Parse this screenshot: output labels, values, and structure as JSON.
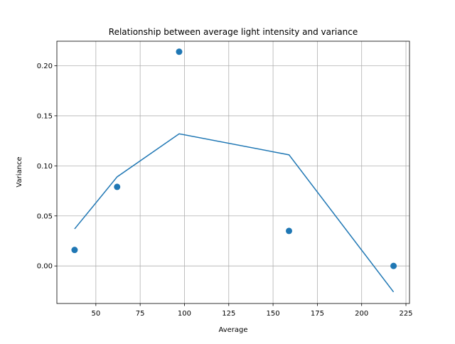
{
  "chart_data": {
    "type": "scatter",
    "title": "Relationship between average light intensity and variance",
    "xlabel": "Average",
    "ylabel": "Variance",
    "xlim": [
      28,
      227
    ],
    "ylim": [
      -0.0375,
      0.2245
    ],
    "xticks": [
      50,
      75,
      100,
      125,
      150,
      175,
      200,
      225
    ],
    "xtick_labels": [
      "50",
      "75",
      "100",
      "125",
      "150",
      "175",
      "200",
      "225"
    ],
    "yticks": [
      0.0,
      0.05,
      0.1,
      0.15,
      0.2
    ],
    "ytick_labels": [
      "0.00",
      "0.05",
      "0.10",
      "0.15",
      "0.20"
    ],
    "grid": true,
    "points": {
      "x": [
        38,
        62,
        97,
        159,
        218
      ],
      "y": [
        0.016,
        0.079,
        0.214,
        0.035,
        0.0
      ]
    },
    "fit_line": {
      "x": [
        38,
        62,
        97,
        159,
        218
      ],
      "y": [
        0.037,
        0.089,
        0.132,
        0.111,
        -0.026
      ]
    },
    "colors": {
      "series": "#1f77b4",
      "grid": "#b0b0b0",
      "axes": "#000000"
    }
  }
}
